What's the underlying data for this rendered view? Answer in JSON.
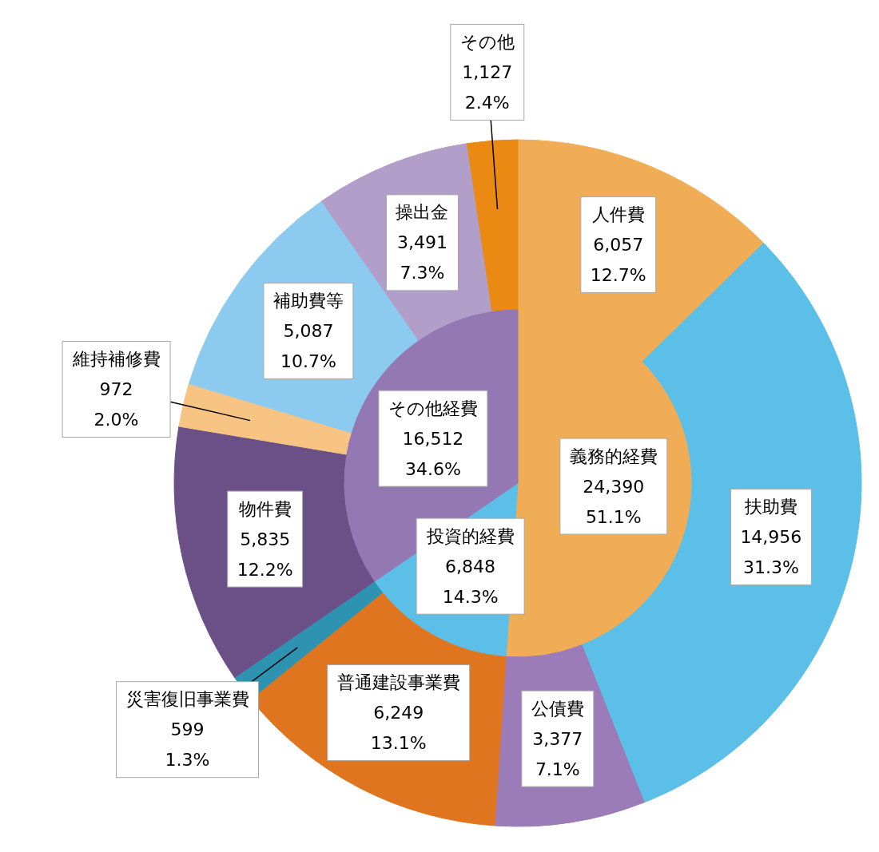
{
  "chart_data": [
    {
      "type": "pie",
      "categories": [
        "義務的経費",
        "投資的経費",
        "その他経費"
      ],
      "values": [
        24390,
        6848,
        16512
      ],
      "colors": [
        "#f0ad56",
        "#5bbfe8",
        "#9478b4"
      ],
      "value_labels": [
        "24,390\n51.1%",
        "6,848\n14.3%",
        "16,512\n34.6%"
      ]
    },
    {
      "type": "donut",
      "categories": [
        "人件費",
        "扶助費",
        "公債費",
        "普通建設事業費",
        "災害復旧事業費",
        "物件費",
        "維持補修費",
        "補助費等",
        "操出金",
        "その他"
      ],
      "values": [
        6057,
        14956,
        3377,
        6249,
        599,
        5835,
        972,
        5087,
        3491,
        1127
      ],
      "colors": [
        "#f0ad56",
        "#5bbfe8",
        "#9b7bb8",
        "#e07520",
        "#2e93b0",
        "#6b5088",
        "#f7c483",
        "#8ccbef",
        "#b19fc9",
        "#eb8a12"
      ],
      "value_labels": [
        "6,057\n12.7%",
        "14,956\n31.3%",
        "3,377\n7.1%",
        "6,249\n13.1%",
        "599\n1.3%",
        "5,835\n12.2%",
        "972\n2.0%",
        "5,087\n10.7%",
        "3,491\n7.3%",
        "1,127\n2.4%"
      ]
    }
  ]
}
